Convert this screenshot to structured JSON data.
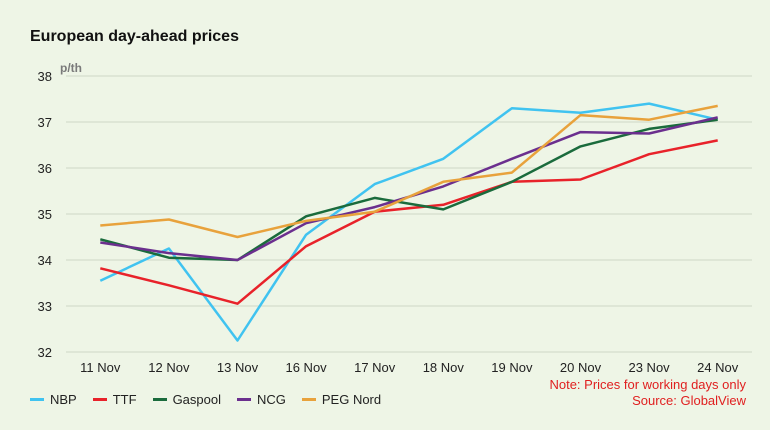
{
  "chart_data": {
    "type": "line",
    "title": "European day-ahead prices",
    "ylabel": "p/th",
    "xlabel": "",
    "categories": [
      "11 Nov",
      "12 Nov",
      "13 Nov",
      "16 Nov",
      "17 Nov",
      "18 Nov",
      "19 Nov",
      "20 Nov",
      "23 Nov",
      "24 Nov"
    ],
    "ylim": [
      32,
      38
    ],
    "yticks": [
      32,
      33,
      34,
      35,
      36,
      37,
      38
    ],
    "grid": true,
    "legend_position": "bottom-left",
    "series": [
      {
        "name": "NBP",
        "color": "#40c3f0",
        "values": [
          33.55,
          34.25,
          32.25,
          34.55,
          35.65,
          36.2,
          37.3,
          37.2,
          37.4,
          37.05
        ]
      },
      {
        "name": "TTF",
        "color": "#e8222a",
        "values": [
          33.82,
          33.45,
          33.05,
          34.3,
          35.05,
          35.2,
          35.7,
          35.75,
          36.3,
          36.6
        ]
      },
      {
        "name": "Gaspool",
        "color": "#1a6b3c",
        "values": [
          34.45,
          34.05,
          34.0,
          34.95,
          35.35,
          35.1,
          35.7,
          36.47,
          36.85,
          37.05
        ]
      },
      {
        "name": "NCG",
        "color": "#6b2f8e",
        "values": [
          34.38,
          34.15,
          34.0,
          34.8,
          35.15,
          35.6,
          36.2,
          36.78,
          36.75,
          37.1
        ]
      },
      {
        "name": "PEG Nord",
        "color": "#e8a23c",
        "values": [
          34.75,
          34.88,
          34.5,
          34.85,
          35.05,
          35.7,
          35.9,
          37.15,
          37.05,
          37.35
        ]
      }
    ],
    "notes": [
      "Note: Prices for working days only",
      "Source: GlobalView"
    ]
  }
}
